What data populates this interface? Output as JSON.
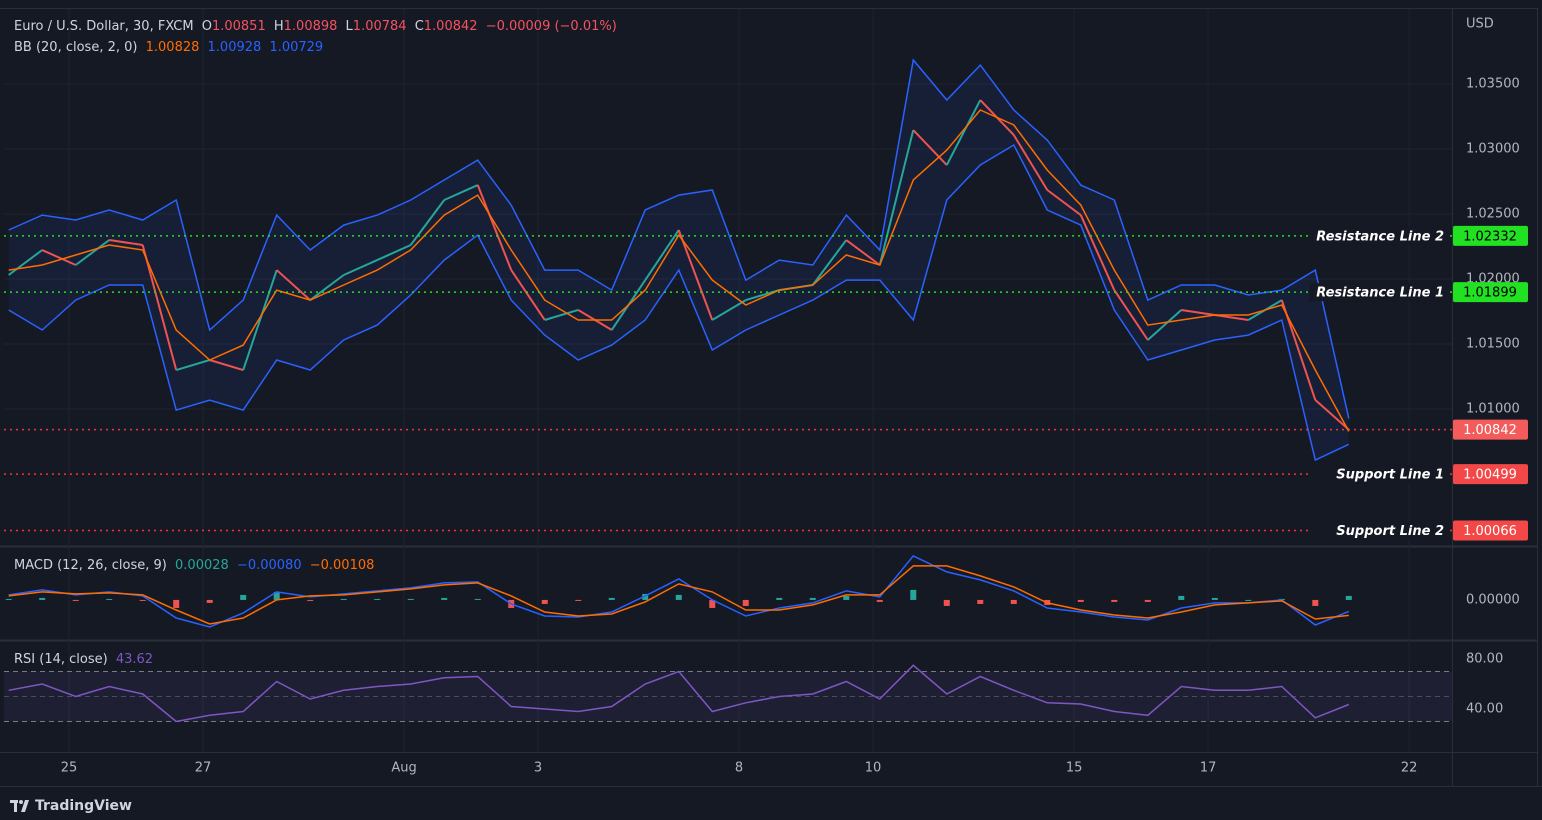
{
  "chart_data": [
    {
      "type": "line",
      "title": "Euro / U.S. Dollar, 30, FXCM",
      "ohlc": [
        {
          "label": "O",
          "value": 1.00851
        },
        {
          "label": "H",
          "value": 1.00898
        },
        {
          "label": "L",
          "value": 1.00784
        },
        {
          "label": "C",
          "value": 1.00842
        }
      ],
      "change": "−0.00009 (−0.01%)",
      "indicator": "BB (20, close, 2, 0)",
      "currency": "USD",
      "x": [
        -0.9,
        -0.4,
        0.1,
        0.6,
        1.1,
        1.6,
        2.1,
        2.6,
        3.1,
        3.6,
        4.1,
        4.6,
        5.1,
        5.6,
        6.1,
        6.6,
        7.1,
        7.6,
        8.1,
        8.6,
        9.1,
        9.6,
        10.1,
        10.6,
        11.1,
        11.6,
        12.1,
        12.6,
        13.1,
        13.6,
        14.1,
        14.6,
        15.1,
        15.6,
        16.1,
        16.6,
        17.1,
        17.6,
        18.1,
        18.6,
        19.1
      ],
      "xlim": [
        -0.97,
        20.64
      ],
      "xticks": [
        {
          "value": 0,
          "label": "25"
        },
        {
          "value": 2,
          "label": "27"
        },
        {
          "value": 5,
          "label": "Aug"
        },
        {
          "value": 7,
          "label": "3"
        },
        {
          "value": 10,
          "label": "8"
        },
        {
          "value": 12,
          "label": "10"
        },
        {
          "value": 15,
          "label": "15"
        },
        {
          "value": 17,
          "label": "17"
        },
        {
          "value": 20,
          "label": "22"
        }
      ],
      "ylim": [
        0.99954,
        1.04085
      ],
      "yticks": [
        {
          "value": 1.01,
          "label": "1.01000"
        },
        {
          "value": 1.015,
          "label": "1.01500"
        },
        {
          "value": 1.02,
          "label": "1.02000"
        },
        {
          "value": 1.025,
          "label": "1.02500"
        },
        {
          "value": 1.03,
          "label": "1.03000"
        },
        {
          "value": 1.035,
          "label": "1.03500"
        }
      ],
      "grid": true,
      "band_fill": "rgba(41,98,255,0.09)",
      "series": [
        {
          "color": "#26a69a",
          "down_color": "#ef5350",
          "values": [
            1.02031,
            1.02223,
            1.02108,
            1.023,
            1.02262,
            1.013,
            1.01377,
            1.013,
            1.02069,
            1.01838,
            1.02031,
            1.02146,
            1.02262,
            1.02608,
            1.02723,
            1.02069,
            1.01685,
            1.01762,
            1.01608,
            1.01992,
            1.02377,
            1.01685,
            1.01838,
            1.01915,
            1.01954,
            1.023,
            1.02108,
            1.03146,
            1.02877,
            1.03377,
            1.03108,
            1.02685,
            1.02492,
            1.01915,
            1.01531,
            1.01762,
            1.01723,
            1.01685,
            1.01838,
            1.01069,
            1.00842
          ]
        },
        {
          "color": "#ff6d00",
          "values": [
            1.02069,
            1.02108,
            1.02185,
            1.02262,
            1.02223,
            1.01608,
            1.01377,
            1.01492,
            1.01915,
            1.01838,
            1.01954,
            1.02069,
            1.02223,
            1.02492,
            1.02646,
            1.02223,
            1.01838,
            1.01685,
            1.01685,
            1.01915,
            1.02338,
            1.01992,
            1.018,
            1.01915,
            1.01954,
            1.02185,
            1.02108,
            1.02762,
            1.02992,
            1.033,
            1.03185,
            1.02838,
            1.02569,
            1.02069,
            1.01646,
            1.01685,
            1.01723,
            1.01723,
            1.018,
            1.013,
            1.00828
          ]
        },
        {
          "color": "#2962ff",
          "values": [
            1.02377,
            1.02492,
            1.02454,
            1.02531,
            1.02454,
            1.02608,
            1.01608,
            1.01838,
            1.02492,
            1.02223,
            1.02415,
            1.02492,
            1.02608,
            1.02762,
            1.02915,
            1.02569,
            1.02069,
            1.02069,
            1.01915,
            1.02531,
            1.02646,
            1.02685,
            1.01992,
            1.02146,
            1.02108,
            1.02492,
            1.02223,
            1.03685,
            1.03377,
            1.03646,
            1.033,
            1.03069,
            1.02723,
            1.02608,
            1.01838,
            1.01954,
            1.01954,
            1.01877,
            1.01915,
            1.02069,
            1.00928
          ]
        },
        {
          "color": "#2962ff",
          "values": [
            1.01762,
            1.01608,
            1.01838,
            1.01954,
            1.01954,
            1.00992,
            1.01069,
            1.00992,
            1.01377,
            1.013,
            1.01531,
            1.01646,
            1.01877,
            1.02146,
            1.02338,
            1.01838,
            1.01569,
            1.01377,
            1.01492,
            1.01685,
            1.02069,
            1.01454,
            1.01608,
            1.01723,
            1.01838,
            1.01992,
            1.01992,
            1.01685,
            1.02608,
            1.02877,
            1.03031,
            1.02531,
            1.02415,
            1.01762,
            1.01377,
            1.01454,
            1.01531,
            1.01569,
            1.01685,
            1.00608,
            1.00729
          ]
        }
      ],
      "price_lines": [
        {
          "name": "Resistance Line 2",
          "value": 1.02332,
          "color": "#22e022",
          "label_color": "#22e022",
          "text_color": "#000000"
        },
        {
          "name": "Resistance Line 1",
          "value": 1.01899,
          "color": "#22e022",
          "label_color": "#22e022",
          "text_color": "#000000"
        },
        {
          "value": 1.00842,
          "color": "#f23645",
          "label_color": "#f45b5b",
          "text_color": "#ffffff"
        },
        {
          "name": "Support Line 1",
          "value": 1.00499,
          "color": "#ff3030",
          "label_color": "#f44848",
          "text_color": "#ffffff"
        },
        {
          "name": "Support Line 2",
          "value": 1.00066,
          "color": "#ff3030",
          "label_color": "#f44848",
          "text_color": "#ffffff"
        }
      ]
    },
    {
      "type": "macd",
      "indicator": "MACD (12, 26, close, 9)",
      "legend_labels": [
        "0.00028",
        "−0.00080",
        "−0.00108"
      ],
      "ylim": [
        -0.0028,
        0.0037
      ],
      "yticks": [
        {
          "value": 0,
          "label": "0.00000"
        }
      ],
      "series": [
        {
          "type": "bar",
          "color": "#26a69a",
          "down_color": "#ef5350",
          "values": [
            7e-05,
            0.00014,
            -7e-05,
            7e-05,
            -7e-05,
            -0.00056,
            -0.00021,
            0.00035,
            0.00056,
            -7e-05,
            7e-05,
            7e-05,
            7e-05,
            0.00014,
            7e-05,
            -0.00056,
            -0.00028,
            -7e-05,
            0.00014,
            0.00042,
            0.00035,
            -0.00056,
            -0.00042,
            0.00014,
            0.00014,
            0.00028,
            -0.00014,
            0.0007,
            -0.00042,
            -0.00028,
            -0.00028,
            -0.00035,
            -0.00014,
            -0.00014,
            -0.00014,
            0.00028,
            0.00014,
            0,
            7e-05,
            -0.00042,
            0.00028
          ]
        },
        {
          "color": "#2962ff",
          "values": [
            0.00035,
            0.0007,
            0.00035,
            0.00056,
            0.00028,
            -0.00126,
            -0.00189,
            -0.00091,
            0.00056,
            0.00021,
            0.00042,
            0.00063,
            0.00084,
            0.00119,
            0.00126,
            -0.00028,
            -0.00112,
            -0.00119,
            -0.00084,
            0.00028,
            0.00147,
            0,
            -0.00112,
            -0.00056,
            -0.00021,
            0.00063,
            0.00021,
            0.00308,
            0.00196,
            0.0014,
            0.00063,
            -0.00056,
            -0.00084,
            -0.00119,
            -0.0014,
            -0.00056,
            -0.00021,
            -0.00021,
            0,
            -0.00175,
            -0.0008
          ]
        },
        {
          "color": "#ff6d00",
          "values": [
            0.00028,
            0.00056,
            0.00042,
            0.00049,
            0.00035,
            -0.0007,
            -0.00168,
            -0.00126,
            0,
            0.00028,
            0.00035,
            0.00056,
            0.00077,
            0.00105,
            0.00119,
            0.00028,
            -0.00084,
            -0.00112,
            -0.00098,
            -0.00014,
            0.00112,
            0.00056,
            -0.0007,
            -0.0007,
            -0.00035,
            0.00035,
            0.00035,
            0.00238,
            0.00238,
            0.00168,
            0.00091,
            -0.00021,
            -0.0007,
            -0.00105,
            -0.00126,
            -0.00084,
            -0.00035,
            -0.00021,
            -7e-05,
            -0.00133,
            -0.00108
          ]
        }
      ]
    },
    {
      "type": "rsi",
      "indicator": "RSI (14, close)",
      "ylim": [
        7.2,
        94.4
      ],
      "yticks": [
        {
          "value": 40,
          "label": "40.00"
        },
        {
          "value": 80,
          "label": "80.00"
        }
      ],
      "bands": [
        30,
        70
      ],
      "midline": 50,
      "band_color": "rgba(126,87,194,0.1)",
      "series": [
        {
          "color": "#7e57c2",
          "values": [
            55,
            60,
            50,
            58,
            52,
            30,
            35,
            38,
            62,
            48,
            55,
            58,
            60,
            65,
            66,
            42,
            40,
            38,
            42,
            60,
            70,
            38,
            45,
            50,
            52,
            62,
            48,
            75,
            52,
            66,
            55,
            45,
            44,
            38,
            35,
            58,
            55,
            55,
            58,
            33,
            43.62
          ]
        }
      ]
    }
  ],
  "brand": "TradingView"
}
